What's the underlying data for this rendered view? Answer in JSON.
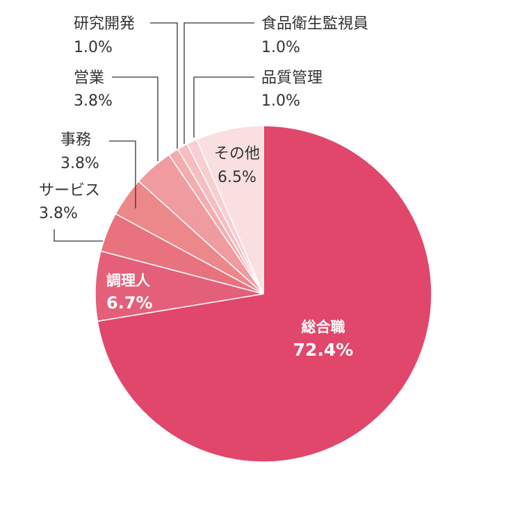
{
  "chart_data": {
    "type": "pie",
    "unit": "%",
    "start": "12 o'clock",
    "direction": "clockwise",
    "slices": [
      {
        "label": "総合職",
        "value": 72.4,
        "value_text": "72.4%",
        "color": "#e0476a"
      },
      {
        "label": "調理人",
        "value": 6.7,
        "value_text": "6.7%",
        "color": "#e45f7a"
      },
      {
        "label": "サービス",
        "value": 3.8,
        "value_text": "3.8%",
        "color": "#e8737f"
      },
      {
        "label": "事務",
        "value": 3.8,
        "value_text": "3.8%",
        "color": "#ec878a"
      },
      {
        "label": "営業",
        "value": 3.8,
        "value_text": "3.8%",
        "color": "#f09ba0"
      },
      {
        "label": "研究開発",
        "value": 1.0,
        "value_text": "1.0%",
        "color": "#f3adb1"
      },
      {
        "label": "食品衛生監視員",
        "value": 1.0,
        "value_text": "1.0%",
        "color": "#f6bec1"
      },
      {
        "label": "品質管理",
        "value": 1.0,
        "value_text": "1.0%",
        "color": "#f8cfd1"
      },
      {
        "label": "その他",
        "value": 6.5,
        "value_text": "6.5%",
        "color": "#fadfe0"
      }
    ]
  }
}
